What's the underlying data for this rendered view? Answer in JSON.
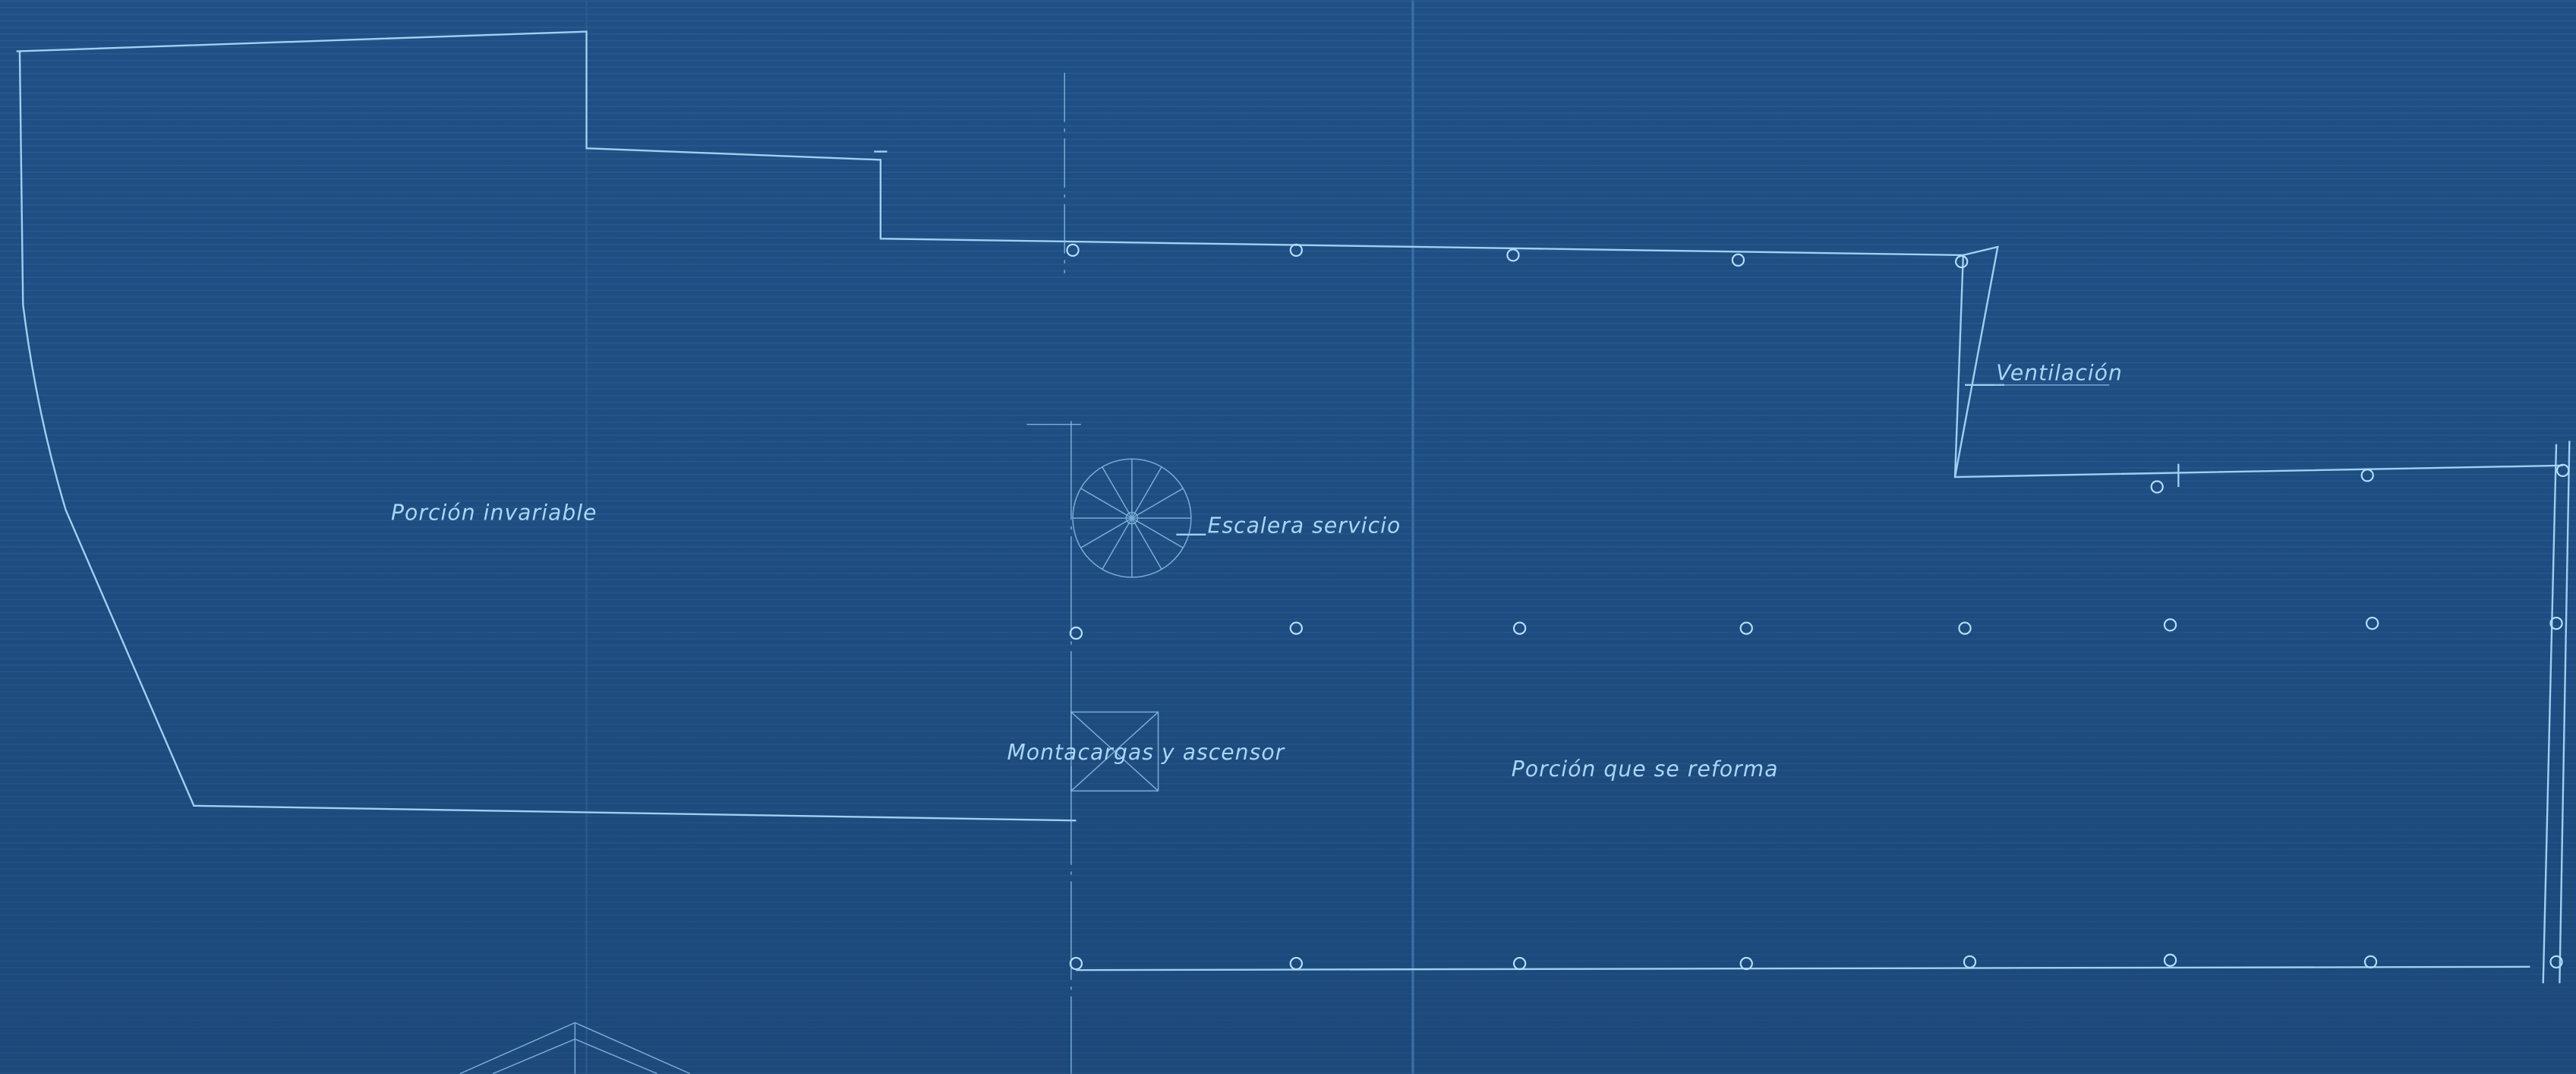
{
  "annotations": [
    "Porción invariable",
    "Escalera servicio",
    "Ventilación",
    "Montacargas y ascensor",
    "Porción que se reforma"
  ]
}
